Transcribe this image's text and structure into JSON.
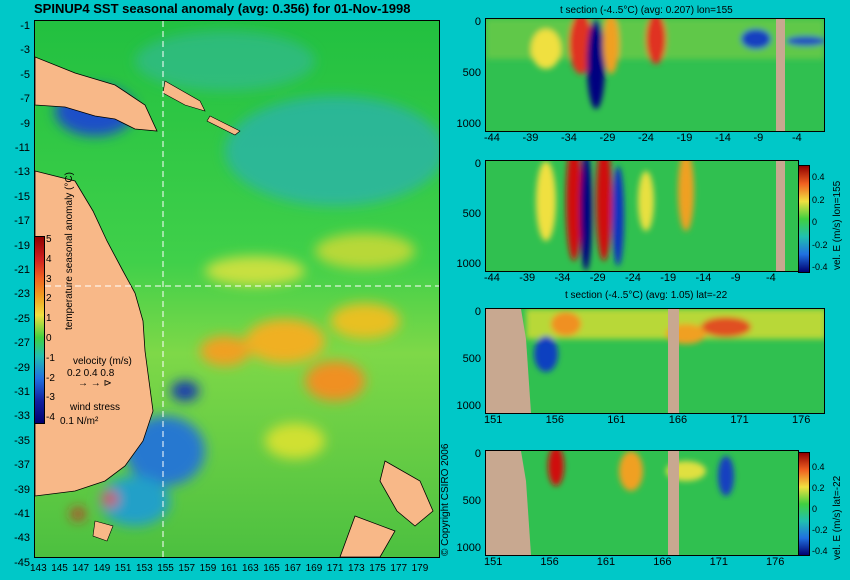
{
  "main_map": {
    "title": "SPINUP4 SST seasonal anomaly (avg: 0.356) for 01-Nov-1998",
    "lat_labels": [
      "-1",
      "-3",
      "-5",
      "-7",
      "-9",
      "-11",
      "-13",
      "-15",
      "-17",
      "-19",
      "-21",
      "-23",
      "-25",
      "-27",
      "-29",
      "-31",
      "-33",
      "-35",
      "-37",
      "-39",
      "-41",
      "-43",
      "-45"
    ],
    "lon_labels": [
      "143",
      "145",
      "147",
      "149",
      "151",
      "153",
      "155",
      "157",
      "159",
      "161",
      "163",
      "165",
      "167",
      "169",
      "171",
      "173",
      "175",
      "177",
      "179"
    ],
    "colorbar": {
      "label": "temperature seasonal anomaly (°C)",
      "ticks": [
        "5",
        "4",
        "3",
        "2",
        "1",
        "0",
        "-1",
        "-2",
        "-3",
        "-4"
      ]
    },
    "velocity_legend": {
      "title": "velocity (m/s)",
      "values": "0.2 0.4 0.8"
    },
    "wind_legend": {
      "title": "wind stress",
      "value": "0.1 N/m²"
    },
    "copyright": "© Copyright CSIRO 2006"
  },
  "panels": [
    {
      "title": "t section (-4..5°C) (avg: 0.207) lon=155",
      "y_ticks": [
        "0",
        "500",
        "1000"
      ],
      "x_ticks": [
        "-44",
        "-39",
        "-34",
        "-29",
        "-24",
        "-19",
        "-14",
        "-9",
        "-4"
      ]
    },
    {
      "title": "",
      "y_ticks": [
        "0",
        "500",
        "1000"
      ],
      "x_ticks": [
        "-44",
        "-39",
        "-34",
        "-29",
        "-24",
        "-19",
        "-14",
        "-9",
        "-4"
      ],
      "colorbar_label": "vel. E (m/s) lon=155",
      "colorbar_ticks": [
        "0.4",
        "0.2",
        "0",
        "-0.2",
        "-0.4"
      ]
    },
    {
      "title": "t section (-4..5°C) (avg: 1.05) lat=-22",
      "y_ticks": [
        "0",
        "500",
        "1000"
      ],
      "x_ticks": [
        "151",
        "156",
        "161",
        "166",
        "171",
        "176"
      ]
    },
    {
      "title": "",
      "y_ticks": [
        "0",
        "500",
        "1000"
      ],
      "x_ticks": [
        "151",
        "156",
        "161",
        "166",
        "171",
        "176"
      ],
      "colorbar_label": "vel. E (m/s) lat=-22",
      "colorbar_ticks": [
        "0.4",
        "0.2",
        "0",
        "-0.2",
        "-0.4"
      ]
    }
  ]
}
